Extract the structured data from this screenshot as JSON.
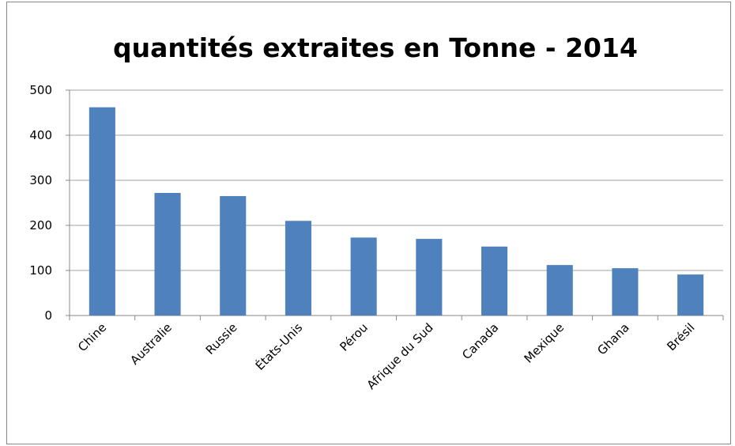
{
  "chart_data": {
    "type": "bar",
    "title": "quantités extraites en Tonne - 2014",
    "categories": [
      "Chine",
      "Australie",
      "Russie",
      "États-Unis",
      "Pérou",
      "Afrique du Sud",
      "Canada",
      "Mexique",
      "Ghana",
      "Brésil"
    ],
    "values": [
      462,
      272,
      265,
      210,
      173,
      170,
      153,
      112,
      105,
      91
    ],
    "color": "#4f81bd",
    "ylim": [
      0,
      500
    ],
    "yticks": [
      0,
      100,
      200,
      300,
      400,
      500
    ],
    "grid": true
  }
}
